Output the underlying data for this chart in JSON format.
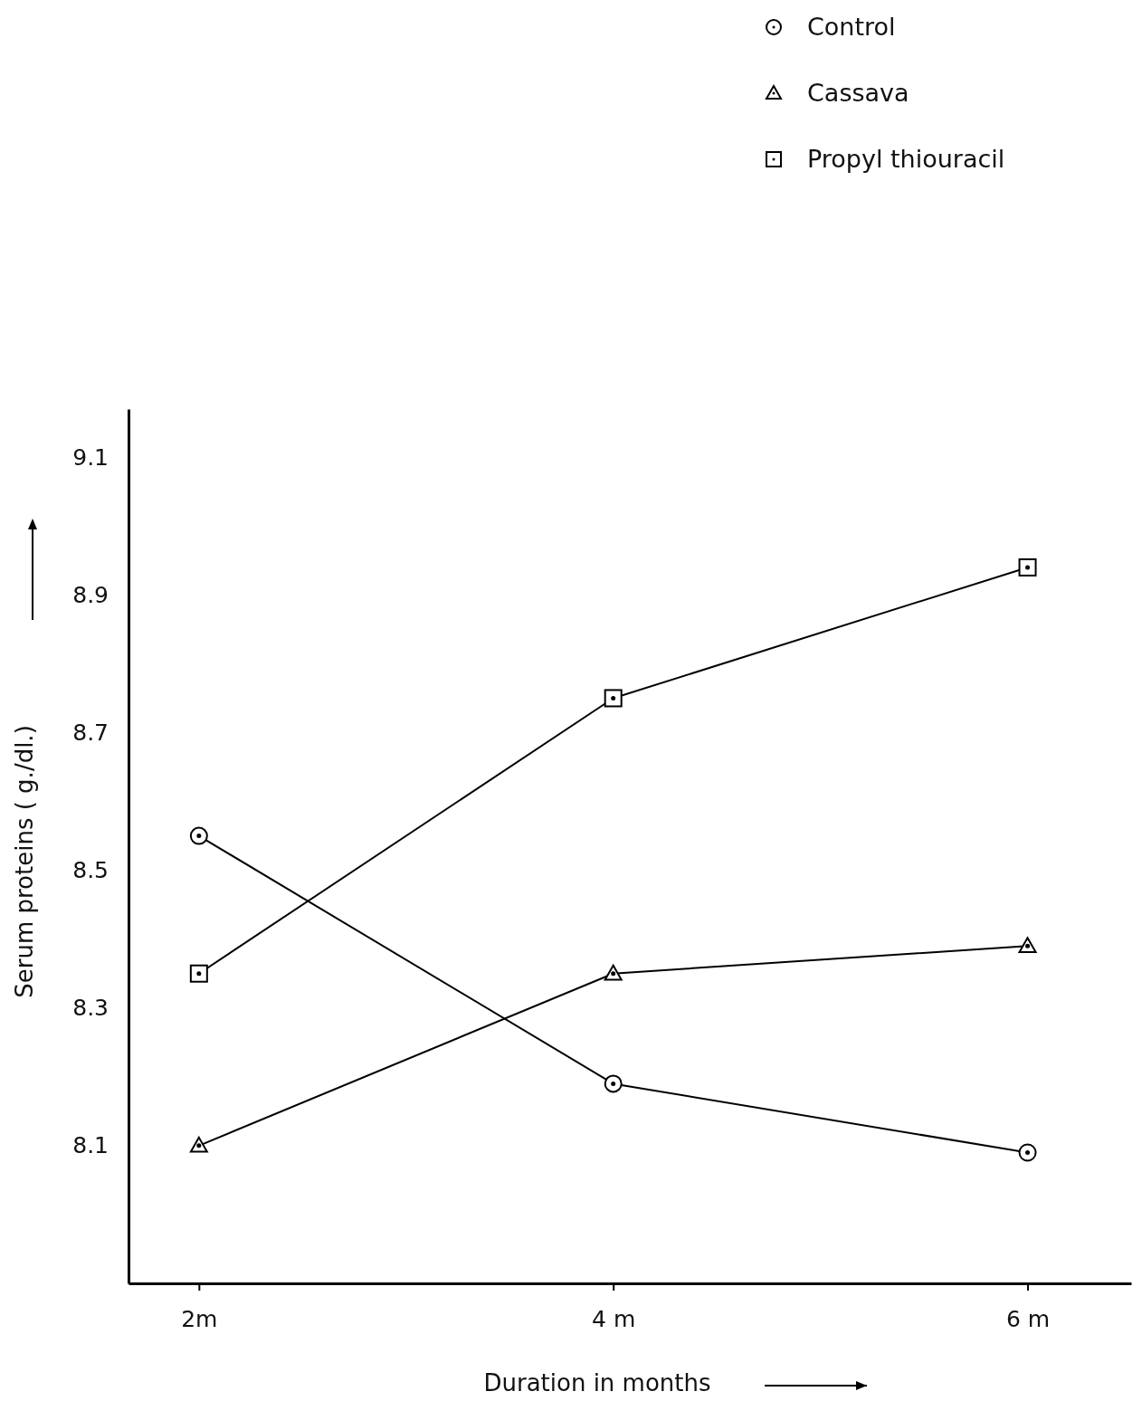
{
  "chart_data": {
    "type": "line",
    "xlabel": "Duration  in  months",
    "ylabel": "Serum  proteins ( g./dl.)",
    "categories": [
      "2m",
      "4 m",
      "6 m"
    ],
    "ylim": [
      7.9,
      9.17
    ],
    "yticks": [
      8.1,
      8.3,
      8.5,
      8.7,
      8.9,
      9.1
    ],
    "grid": false,
    "legend": "top right",
    "line_style": "solid",
    "series": [
      {
        "name": "Control",
        "color": "#000000",
        "marker": "circle",
        "values": [
          8.55,
          8.19,
          8.09
        ]
      },
      {
        "name": "Cassava",
        "color": "#000000",
        "marker": "triangle",
        "values": [
          8.1,
          8.35,
          8.39
        ]
      },
      {
        "name": "Propyl  thiouracil",
        "color": "#000000",
        "marker": "square",
        "values": [
          8.35,
          8.75,
          8.94
        ]
      }
    ]
  }
}
